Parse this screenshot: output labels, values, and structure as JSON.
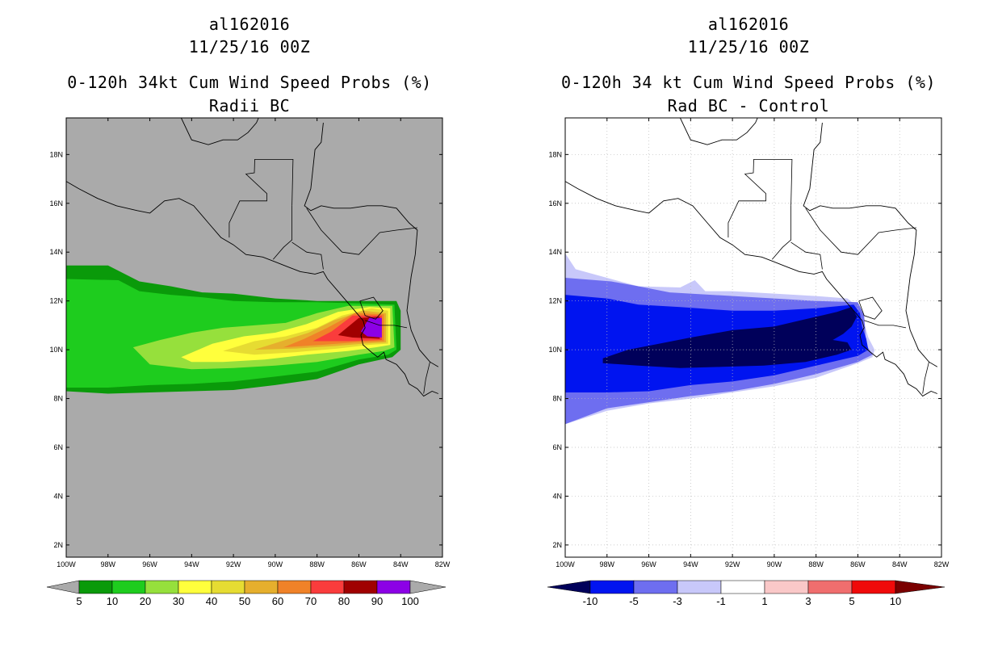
{
  "left_panel": {
    "storm_id": "al162016",
    "datetime": "11/25/16 00Z",
    "title": "0-120h 34kt Cum Wind Speed Probs (%)",
    "subtitle": "Radii BC",
    "background_color": "#aaaaaa",
    "colorbar": {
      "labels": [
        "5",
        "10",
        "20",
        "30",
        "40",
        "50",
        "60",
        "70",
        "80",
        "90",
        "100"
      ],
      "colors": [
        "#0a9a0a",
        "#1ecc1e",
        "#96e03c",
        "#ffff3c",
        "#e6dc32",
        "#e6af2d",
        "#f08228",
        "#fa3c3c",
        "#a00000",
        "#8c00e6"
      ],
      "end_color": "#aaaaaa"
    }
  },
  "right_panel": {
    "storm_id": "al162016",
    "datetime": "11/25/16 00Z",
    "title": "0-120h 34 kt Cum Wind Speed Probs (%)",
    "subtitle": "Rad BC - Control",
    "background_color": "#ffffff",
    "colorbar": {
      "labels": [
        "-10",
        "-5",
        "-3",
        "-1",
        "1",
        "3",
        "5",
        "10"
      ],
      "colors": [
        "#00005a",
        "#0014f0",
        "#6e6ef0",
        "#c8c8fa",
        "#ffffff",
        "#fac8c8",
        "#f06e6e",
        "#f00a0a",
        "#7a0000"
      ]
    }
  },
  "axes": {
    "lat_labels": [
      "18N",
      "16N",
      "14N",
      "12N",
      "10N",
      "8N",
      "6N",
      "4N",
      "2N"
    ],
    "lon_labels": [
      "100W",
      "98W",
      "96W",
      "94W",
      "92W",
      "90W",
      "88W",
      "86W",
      "84W",
      "82W"
    ],
    "lat_values": [
      18,
      16,
      14,
      12,
      10,
      8,
      6,
      4,
      2
    ],
    "lon_values": [
      -100,
      -98,
      -96,
      -94,
      -92,
      -90,
      -88,
      -86,
      -84,
      -82
    ],
    "lon_range": [
      -100,
      -82
    ],
    "lat_range": [
      1.5,
      19.5
    ]
  }
}
